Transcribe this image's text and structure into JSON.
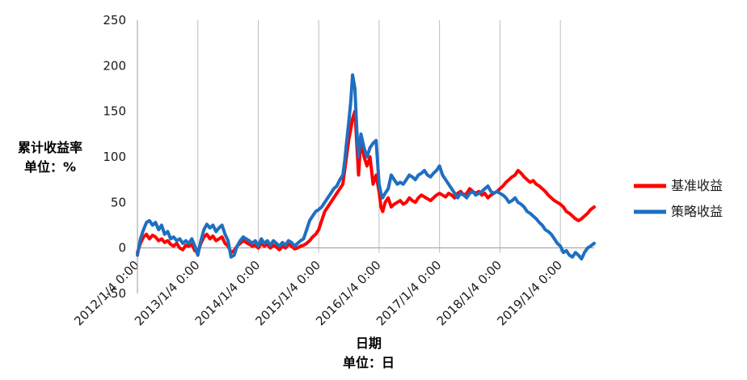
{
  "chart_data": {
    "type": "line",
    "title": "",
    "ylabel": [
      "累计收益率",
      "单位：%"
    ],
    "xlabel": [
      "日期",
      "单位：日"
    ],
    "ylim": [
      -50,
      250
    ],
    "yticks": [
      -50,
      0,
      50,
      100,
      150,
      200,
      250
    ],
    "xlim": [
      2012.0,
      2019.56
    ],
    "xtick_positions": [
      2012.0,
      2013.0,
      2014.0,
      2015.0,
      2016.0,
      2017.0,
      2018.0,
      2019.0
    ],
    "xtick_labels": [
      "2012/1/4 0:00",
      "2013/1/4 0:00",
      "2014/1/4 0:00",
      "2015/1/4 0:00",
      "2016/1/4 0:00",
      "2017/1/4 0:00",
      "2018/1/4 0:00",
      "2019/1/4 0:00"
    ],
    "grid": {
      "vertical": true,
      "horizontal": false
    },
    "legend_position": "right",
    "series": [
      {
        "name": "基准收益",
        "color": "#ff0000",
        "x": [
          2012.0,
          2012.05,
          2012.1,
          2012.15,
          2012.2,
          2012.25,
          2012.3,
          2012.35,
          2012.4,
          2012.45,
          2012.5,
          2012.55,
          2012.6,
          2012.65,
          2012.7,
          2012.75,
          2012.8,
          2012.85,
          2012.9,
          2012.95,
          2013.0,
          2013.05,
          2013.1,
          2013.15,
          2013.2,
          2013.25,
          2013.3,
          2013.35,
          2013.4,
          2013.45,
          2013.5,
          2013.55,
          2013.6,
          2013.65,
          2013.7,
          2013.75,
          2013.8,
          2013.85,
          2013.9,
          2013.95,
          2014.0,
          2014.05,
          2014.1,
          2014.15,
          2014.2,
          2014.25,
          2014.3,
          2014.35,
          2014.4,
          2014.45,
          2014.5,
          2014.55,
          2014.6,
          2014.65,
          2014.7,
          2014.75,
          2014.8,
          2014.85,
          2014.9,
          2014.95,
          2015.0,
          2015.05,
          2015.1,
          2015.15,
          2015.2,
          2015.25,
          2015.3,
          2015.35,
          2015.4,
          2015.43,
          2015.46,
          2015.5,
          2015.53,
          2015.56,
          2015.6,
          2015.63,
          2015.66,
          2015.7,
          2015.75,
          2015.8,
          2015.85,
          2015.9,
          2015.95,
          2016.0,
          2016.03,
          2016.06,
          2016.1,
          2016.15,
          2016.2,
          2016.25,
          2016.3,
          2016.35,
          2016.4,
          2016.45,
          2016.5,
          2016.55,
          2016.6,
          2016.65,
          2016.7,
          2016.75,
          2016.8,
          2016.85,
          2016.9,
          2016.95,
          2017.0,
          2017.05,
          2017.1,
          2017.15,
          2017.2,
          2017.25,
          2017.3,
          2017.35,
          2017.4,
          2017.45,
          2017.5,
          2017.55,
          2017.6,
          2017.65,
          2017.7,
          2017.75,
          2017.8,
          2017.85,
          2017.9,
          2017.95,
          2018.0,
          2018.05,
          2018.1,
          2018.15,
          2018.2,
          2018.25,
          2018.3,
          2018.35,
          2018.4,
          2018.45,
          2018.5,
          2018.55,
          2018.6,
          2018.65,
          2018.7,
          2018.75,
          2018.8,
          2018.85,
          2018.9,
          2018.95,
          2019.0,
          2019.05,
          2019.1,
          2019.15,
          2019.2,
          2019.25,
          2019.3,
          2019.35,
          2019.4,
          2019.45,
          2019.5,
          2019.56
        ],
        "y": [
          -5,
          5,
          12,
          15,
          10,
          14,
          12,
          8,
          10,
          6,
          8,
          4,
          2,
          5,
          0,
          -2,
          3,
          2,
          4,
          -3,
          -5,
          5,
          12,
          15,
          10,
          13,
          8,
          10,
          12,
          5,
          2,
          -5,
          -3,
          2,
          5,
          8,
          6,
          4,
          2,
          3,
          0,
          5,
          2,
          4,
          0,
          3,
          1,
          -2,
          2,
          0,
          4,
          2,
          -1,
          0,
          2,
          3,
          5,
          8,
          12,
          15,
          20,
          30,
          40,
          45,
          50,
          55,
          60,
          65,
          70,
          85,
          100,
          120,
          130,
          142,
          150,
          115,
          80,
          120,
          100,
          90,
          100,
          70,
          80,
          62,
          45,
          40,
          50,
          55,
          45,
          48,
          50,
          52,
          48,
          50,
          55,
          52,
          50,
          55,
          58,
          56,
          54,
          52,
          55,
          58,
          60,
          58,
          56,
          60,
          58,
          55,
          60,
          62,
          58,
          60,
          65,
          62,
          60,
          62,
          58,
          60,
          55,
          58,
          60,
          62,
          65,
          68,
          72,
          75,
          78,
          80,
          85,
          82,
          78,
          75,
          72,
          74,
          70,
          68,
          65,
          62,
          58,
          55,
          52,
          50,
          48,
          45,
          40,
          38,
          35,
          32,
          30,
          32,
          35,
          38,
          42,
          45
        ]
      },
      {
        "name": "策略收益",
        "color": "#1f6fc0",
        "x": [
          2012.0,
          2012.05,
          2012.1,
          2012.15,
          2012.2,
          2012.25,
          2012.3,
          2012.35,
          2012.4,
          2012.45,
          2012.5,
          2012.55,
          2012.6,
          2012.65,
          2012.7,
          2012.75,
          2012.8,
          2012.85,
          2012.9,
          2012.95,
          2013.0,
          2013.05,
          2013.1,
          2013.15,
          2013.2,
          2013.25,
          2013.3,
          2013.35,
          2013.4,
          2013.45,
          2013.5,
          2013.55,
          2013.6,
          2013.65,
          2013.7,
          2013.75,
          2013.8,
          2013.85,
          2013.9,
          2013.95,
          2014.0,
          2014.05,
          2014.1,
          2014.15,
          2014.2,
          2014.25,
          2014.3,
          2014.35,
          2014.4,
          2014.45,
          2014.5,
          2014.55,
          2014.6,
          2014.65,
          2014.7,
          2014.75,
          2014.8,
          2014.85,
          2014.9,
          2014.95,
          2015.0,
          2015.05,
          2015.1,
          2015.15,
          2015.2,
          2015.25,
          2015.3,
          2015.35,
          2015.4,
          2015.43,
          2015.46,
          2015.5,
          2015.53,
          2015.56,
          2015.6,
          2015.63,
          2015.66,
          2015.7,
          2015.75,
          2015.8,
          2015.85,
          2015.9,
          2015.95,
          2016.0,
          2016.03,
          2016.06,
          2016.1,
          2016.15,
          2016.2,
          2016.25,
          2016.3,
          2016.35,
          2016.4,
          2016.45,
          2016.5,
          2016.55,
          2016.6,
          2016.65,
          2016.7,
          2016.75,
          2016.8,
          2016.85,
          2016.9,
          2016.95,
          2017.0,
          2017.05,
          2017.1,
          2017.15,
          2017.2,
          2017.25,
          2017.3,
          2017.35,
          2017.4,
          2017.45,
          2017.5,
          2017.55,
          2017.6,
          2017.65,
          2017.7,
          2017.75,
          2017.8,
          2017.85,
          2017.9,
          2017.95,
          2018.0,
          2018.05,
          2018.1,
          2018.15,
          2018.2,
          2018.25,
          2018.3,
          2018.35,
          2018.4,
          2018.45,
          2018.5,
          2018.55,
          2018.6,
          2018.65,
          2018.7,
          2018.75,
          2018.8,
          2018.85,
          2018.9,
          2018.95,
          2019.0,
          2019.05,
          2019.1,
          2019.15,
          2019.2,
          2019.25,
          2019.3,
          2019.35,
          2019.4,
          2019.45,
          2019.5,
          2019.56
        ],
        "y": [
          -8,
          10,
          20,
          28,
          30,
          25,
          28,
          20,
          25,
          15,
          18,
          10,
          12,
          8,
          10,
          5,
          8,
          5,
          10,
          2,
          -8,
          8,
          20,
          26,
          22,
          25,
          18,
          22,
          25,
          15,
          8,
          -10,
          -8,
          2,
          8,
          12,
          10,
          8,
          5,
          8,
          2,
          10,
          5,
          8,
          3,
          8,
          5,
          2,
          6,
          3,
          8,
          6,
          2,
          5,
          8,
          10,
          20,
          30,
          35,
          40,
          42,
          45,
          50,
          55,
          60,
          65,
          68,
          75,
          80,
          95,
          115,
          140,
          160,
          190,
          175,
          130,
          100,
          125,
          110,
          100,
          110,
          115,
          118,
          70,
          60,
          55,
          60,
          65,
          80,
          75,
          70,
          72,
          70,
          75,
          80,
          78,
          75,
          80,
          82,
          85,
          80,
          78,
          82,
          85,
          90,
          80,
          75,
          70,
          65,
          60,
          55,
          60,
          58,
          55,
          60,
          62,
          58,
          60,
          62,
          65,
          68,
          62,
          60,
          62,
          60,
          58,
          55,
          50,
          52,
          55,
          50,
          48,
          45,
          40,
          38,
          35,
          32,
          28,
          25,
          20,
          18,
          15,
          10,
          5,
          2,
          -5,
          -3,
          -8,
          -10,
          -5,
          -8,
          -12,
          -5,
          0,
          2,
          5
        ]
      }
    ]
  }
}
